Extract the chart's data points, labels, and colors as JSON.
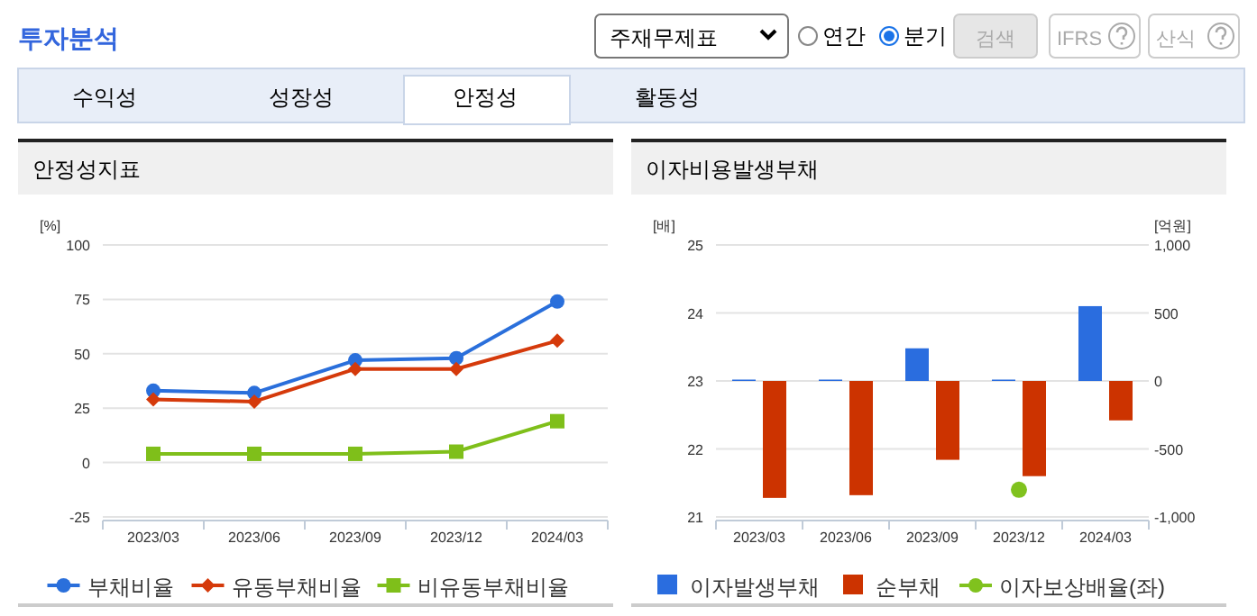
{
  "chart_data": [
    {
      "type": "other",
      "title": "투자분석",
      "annotations": [
        "주재무제표",
        "연간",
        "분기",
        "검색",
        "IFRS",
        "산식",
        "수익성",
        "성장성",
        "안정성",
        "활동성"
      ]
    },
    {
      "type": "line",
      "title": "안정성지표",
      "ylabel": "[%]",
      "categories": [
        "2023/03",
        "2023/06",
        "2023/09",
        "2023/12",
        "2024/03"
      ],
      "series": [
        {
          "name": "부채비율",
          "color": "#2a6fdb",
          "marker": "circle",
          "values": [
            33,
            32,
            47,
            48,
            74
          ]
        },
        {
          "name": "유동부채비율",
          "color": "#d53a0b",
          "marker": "diamond",
          "values": [
            29,
            28,
            43,
            43,
            56
          ]
        },
        {
          "name": "비유동부채비율",
          "color": "#7fbf1a",
          "marker": "square",
          "values": [
            4,
            4,
            4,
            5,
            19
          ]
        }
      ],
      "ylim": [
        -25,
        100
      ],
      "yticks": [
        -25,
        0,
        25,
        50,
        75,
        100
      ],
      "grid": "y",
      "legend": "bottom",
      "line_style": "solid"
    },
    {
      "type": "bar",
      "title": "이자비용발생부채",
      "ylabel": "[배]",
      "y2label": "[억원]",
      "categories": [
        "2023/03",
        "2023/06",
        "2023/09",
        "2023/12",
        "2024/03"
      ],
      "series": [
        {
          "name": "이자발생부채",
          "color": "#2a6ddf",
          "axis": "y2",
          "values": [
            10,
            10,
            240,
            10,
            550
          ]
        },
        {
          "name": "순부채",
          "color": "#cc3300",
          "axis": "y2",
          "values": [
            -860,
            -840,
            -580,
            -700,
            -290
          ]
        },
        {
          "name": "이자보상배율(좌)",
          "type": "scatter",
          "marker": "circle",
          "color": "#80c21e",
          "values": [
            null,
            null,
            null,
            21.4,
            null
          ]
        }
      ],
      "ylim": [
        21,
        25
      ],
      "yticks": [
        21,
        22,
        23,
        24,
        25
      ],
      "y2lim": [
        -1000,
        1000
      ],
      "y2ticks": [
        {
          "value": -1000,
          "label": "-1,000"
        },
        -500,
        0,
        500,
        {
          "value": 1000,
          "label": "1,000"
        }
      ],
      "grid": "y",
      "legend": "bottom"
    }
  ]
}
